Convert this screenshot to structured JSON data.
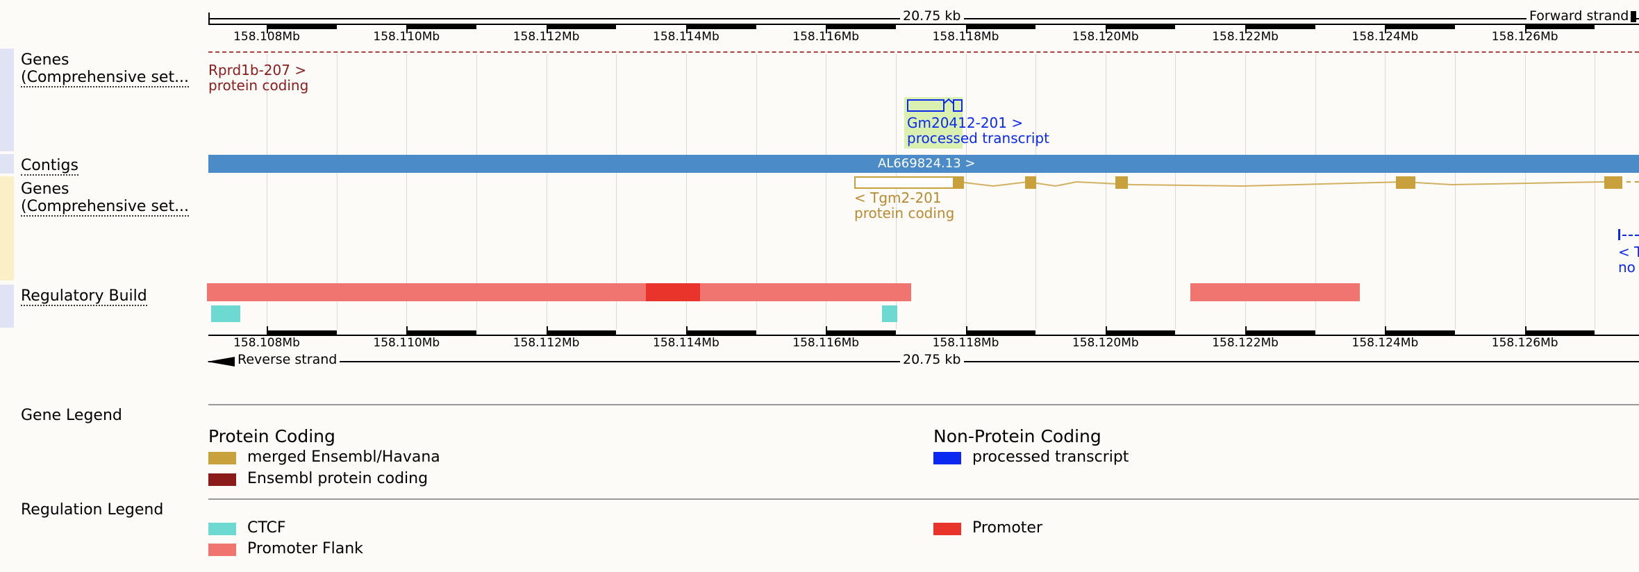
{
  "ruler": {
    "span_label": "20.75 kb",
    "forward_strand": "Forward strand",
    "reverse_strand": "Reverse strand",
    "ticks": [
      "158.108Mb",
      "158.110Mb",
      "158.112Mb",
      "158.114Mb",
      "158.116Mb",
      "158.118Mb",
      "158.120Mb",
      "158.122Mb",
      "158.124Mb",
      "158.126Mb"
    ]
  },
  "tracks": {
    "genes_forward": {
      "label_line1": "Genes",
      "label_line2": "(Comprehensive set..."
    },
    "contigs": {
      "label": "Contigs"
    },
    "genes_reverse": {
      "label_line1": "Genes",
      "label_line2": "(Comprehensive set..."
    },
    "regulatory": {
      "label": "Regulatory Build"
    }
  },
  "features": {
    "rprd1b": {
      "name": "Rprd1b-207 >",
      "biotype": "protein coding"
    },
    "gm20412": {
      "name": "Gm20412-201 >",
      "biotype": "processed transcript"
    },
    "contig": {
      "name": "AL669824.13 >"
    },
    "tgm2": {
      "name": "< Tgm2-201",
      "biotype": "protein coding"
    },
    "cut_off_gene": {
      "name": "< T",
      "biotype": "no"
    }
  },
  "legend": {
    "gene_legend_title": "Gene Legend",
    "protein_coding_heading": "Protein Coding",
    "non_protein_coding_heading": "Non-Protein Coding",
    "merged": "merged Ensembl/Havana",
    "ensembl_pc": "Ensembl protein coding",
    "processed": "processed transcript",
    "regulation_legend_title": "Regulation Legend",
    "ctcf": "CTCF",
    "promoter_flank": "Promoter Flank",
    "promoter": "Promoter"
  },
  "colors": {
    "merged": "#c8a03c",
    "ensembl_pc": "#8b1a1a",
    "processed": "#0a28f0",
    "ctcf": "#6ed9d0",
    "promoter_flank": "#f07470",
    "promoter": "#e8342a",
    "contig": "#4a8bc8"
  }
}
